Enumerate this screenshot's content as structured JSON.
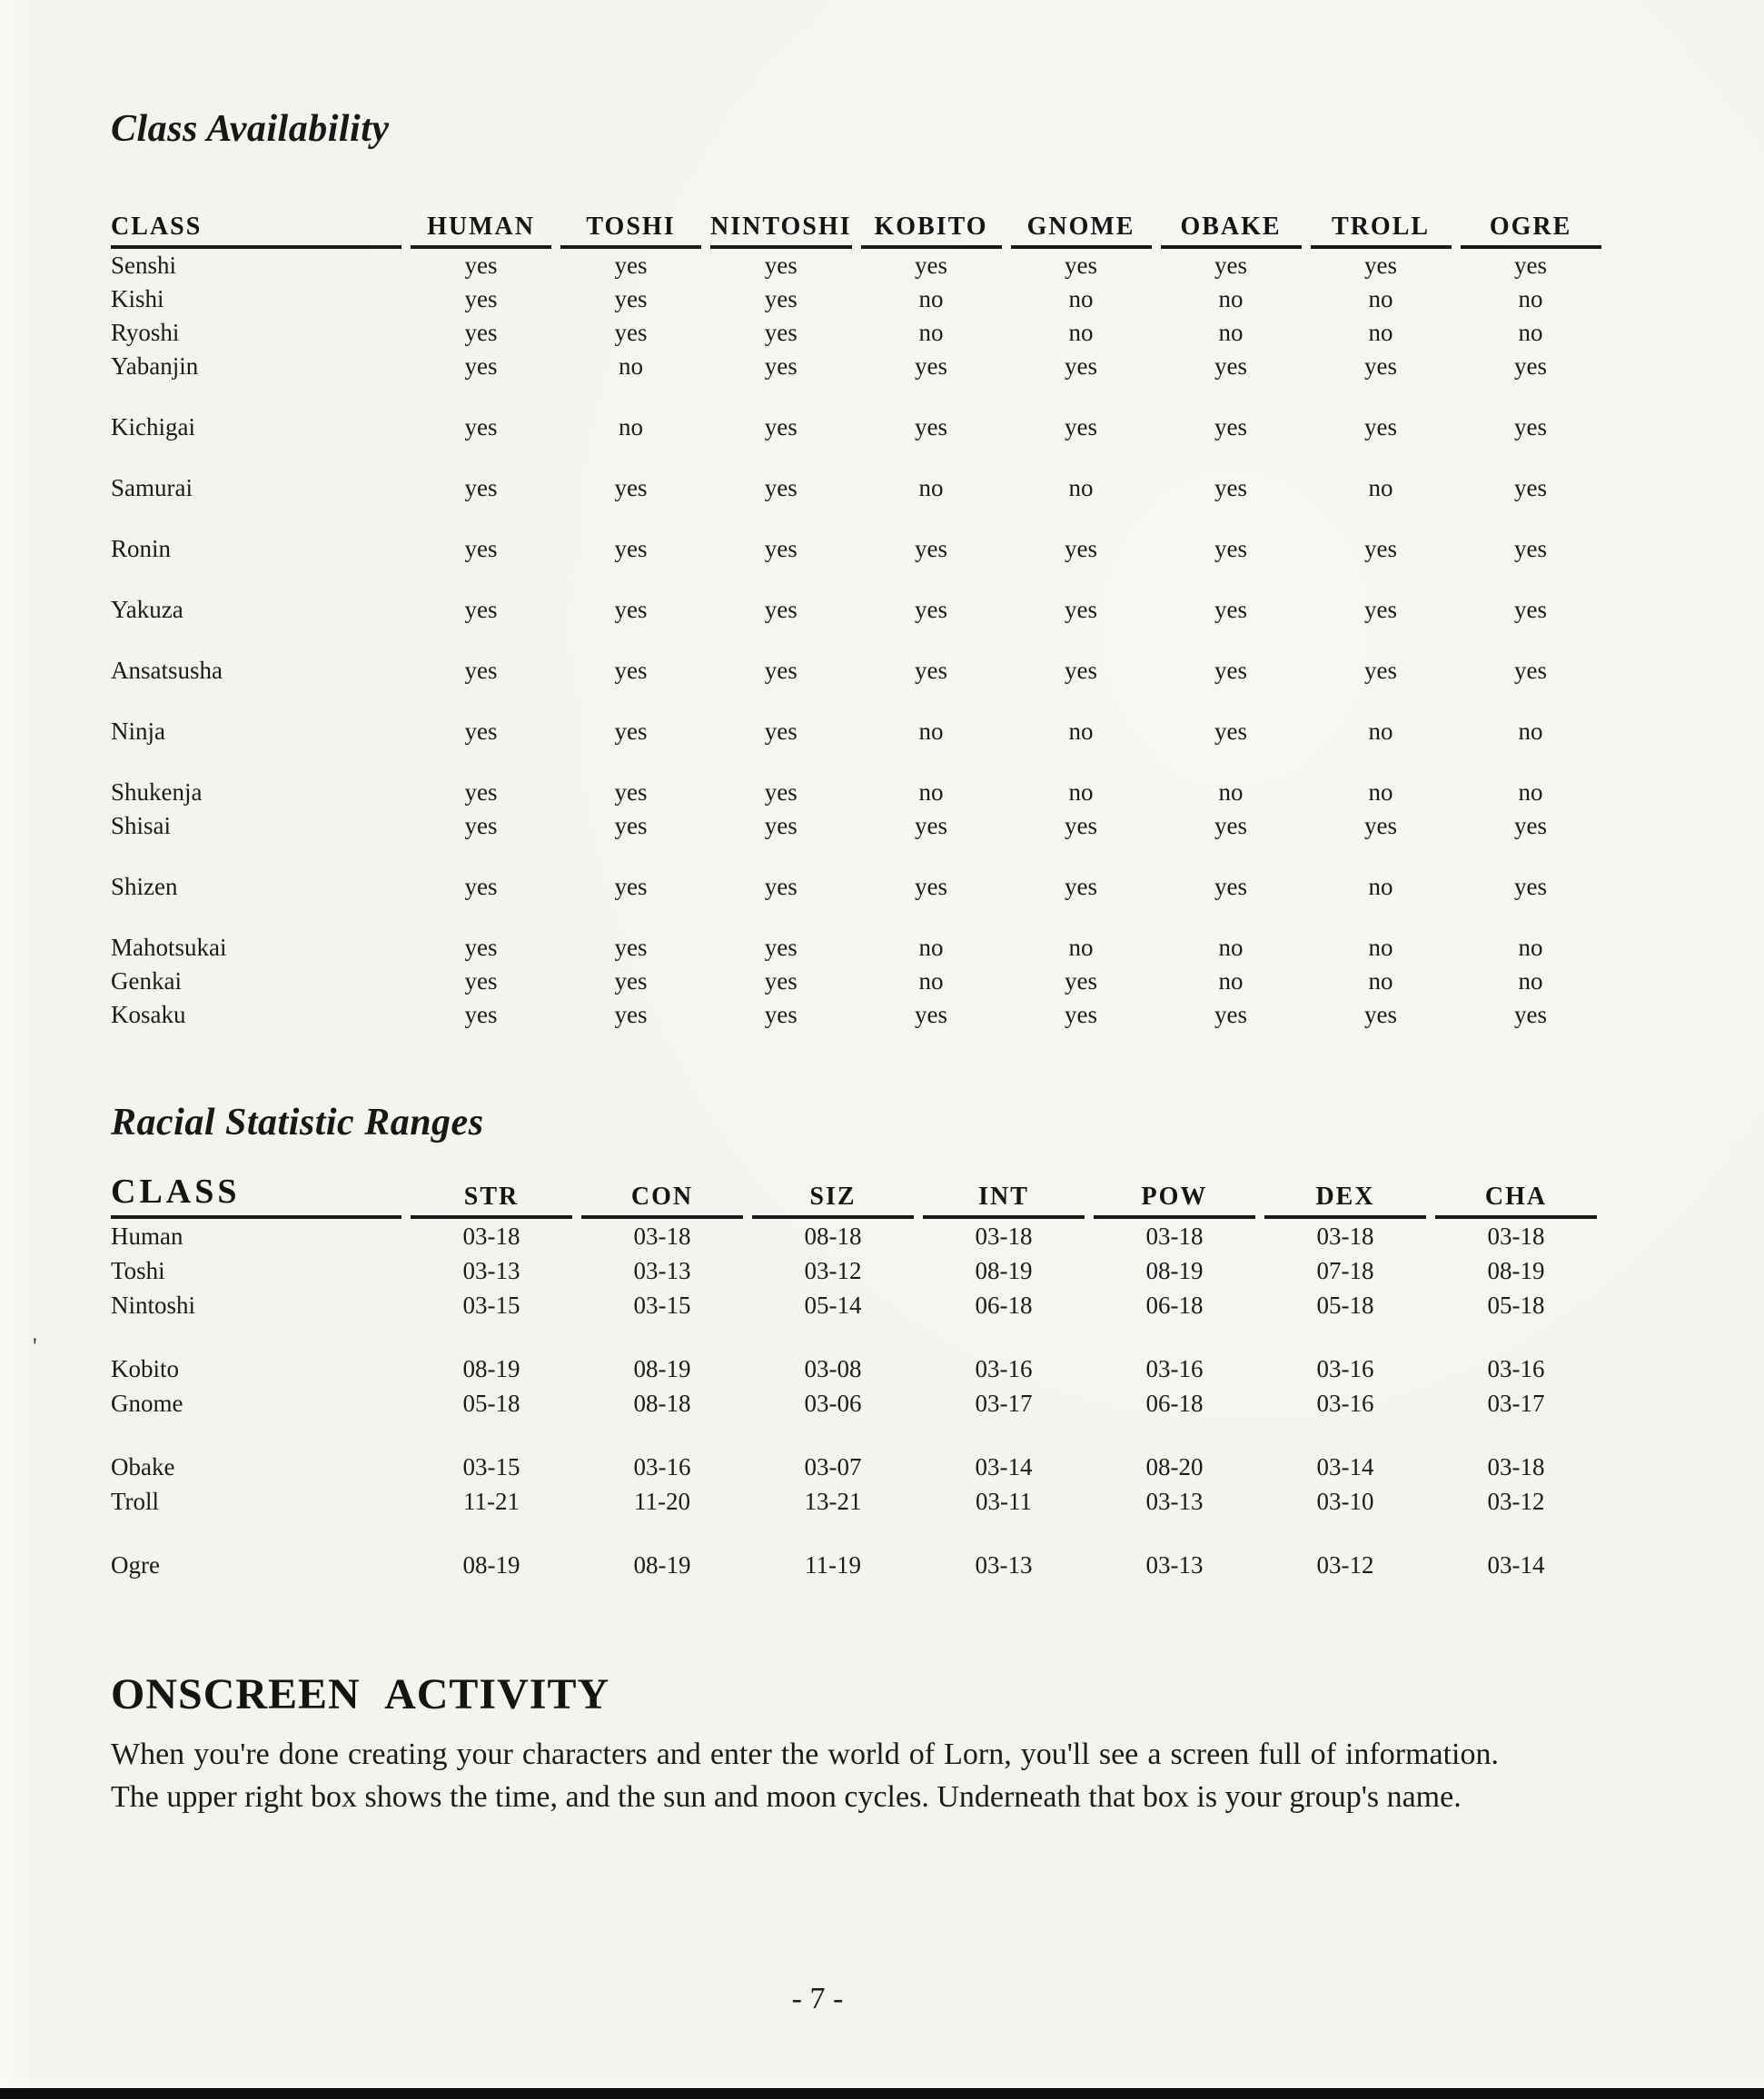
{
  "page": {
    "number_label": "- 7 -",
    "speck": "'"
  },
  "availability": {
    "title": "Class Availability",
    "columns": [
      "CLASS",
      "HUMAN",
      "TOSHI",
      "NINTOSHI",
      "KOBITO",
      "GNOME",
      "OBAKE",
      "TROLL",
      "OGRE"
    ],
    "rows": [
      {
        "name": "Senshi",
        "gap": false,
        "values": [
          "yes",
          "yes",
          "yes",
          "yes",
          "yes",
          "yes",
          "yes",
          "yes"
        ]
      },
      {
        "name": "Kishi",
        "gap": false,
        "values": [
          "yes",
          "yes",
          "yes",
          "no",
          "no",
          "no",
          "no",
          "no"
        ]
      },
      {
        "name": "Ryoshi",
        "gap": false,
        "values": [
          "yes",
          "yes",
          "yes",
          "no",
          "no",
          "no",
          "no",
          "no"
        ]
      },
      {
        "name": "Yabanjin",
        "gap": false,
        "values": [
          "yes",
          "no",
          "yes",
          "yes",
          "yes",
          "yes",
          "yes",
          "yes"
        ]
      },
      {
        "name": "Kichigai",
        "gap": true,
        "values": [
          "yes",
          "no",
          "yes",
          "yes",
          "yes",
          "yes",
          "yes",
          "yes"
        ]
      },
      {
        "name": "Samurai",
        "gap": true,
        "values": [
          "yes",
          "yes",
          "yes",
          "no",
          "no",
          "yes",
          "no",
          "yes"
        ]
      },
      {
        "name": "Ronin",
        "gap": true,
        "values": [
          "yes",
          "yes",
          "yes",
          "yes",
          "yes",
          "yes",
          "yes",
          "yes"
        ]
      },
      {
        "name": "Yakuza",
        "gap": true,
        "values": [
          "yes",
          "yes",
          "yes",
          "yes",
          "yes",
          "yes",
          "yes",
          "yes"
        ]
      },
      {
        "name": "Ansatsusha",
        "gap": true,
        "values": [
          "yes",
          "yes",
          "yes",
          "yes",
          "yes",
          "yes",
          "yes",
          "yes"
        ]
      },
      {
        "name": "Ninja",
        "gap": true,
        "values": [
          "yes",
          "yes",
          "yes",
          "no",
          "no",
          "yes",
          "no",
          "no"
        ]
      },
      {
        "name": "Shukenja",
        "gap": true,
        "values": [
          "yes",
          "yes",
          "yes",
          "no",
          "no",
          "no",
          "no",
          "no"
        ]
      },
      {
        "name": "Shisai",
        "gap": false,
        "values": [
          "yes",
          "yes",
          "yes",
          "yes",
          "yes",
          "yes",
          "yes",
          "yes"
        ]
      },
      {
        "name": "Shizen",
        "gap": true,
        "values": [
          "yes",
          "yes",
          "yes",
          "yes",
          "yes",
          "yes",
          "no",
          "yes"
        ]
      },
      {
        "name": "Mahotsukai",
        "gap": true,
        "values": [
          "yes",
          "yes",
          "yes",
          "no",
          "no",
          "no",
          "no",
          "no"
        ]
      },
      {
        "name": "Genkai",
        "gap": false,
        "values": [
          "yes",
          "yes",
          "yes",
          "no",
          "yes",
          "no",
          "no",
          "no"
        ]
      },
      {
        "name": "Kosaku",
        "gap": false,
        "values": [
          "yes",
          "yes",
          "yes",
          "yes",
          "yes",
          "yes",
          "yes",
          "yes"
        ]
      }
    ]
  },
  "stats": {
    "title": "Racial Statistic Ranges",
    "columns": [
      "CLASS",
      "STR",
      "CON",
      "SIZ",
      "INT",
      "POW",
      "DEX",
      "CHA"
    ],
    "rows": [
      {
        "name": "Human",
        "gap": false,
        "values": [
          "03-18",
          "03-18",
          "08-18",
          "03-18",
          "03-18",
          "03-18",
          "03-18"
        ]
      },
      {
        "name": "Toshi",
        "gap": false,
        "values": [
          "03-13",
          "03-13",
          "03-12",
          "08-19",
          "08-19",
          "07-18",
          "08-19"
        ]
      },
      {
        "name": "Nintoshi",
        "gap": false,
        "values": [
          "03-15",
          "03-15",
          "05-14",
          "06-18",
          "06-18",
          "05-18",
          "05-18"
        ]
      },
      {
        "name": "Kobito",
        "gap": true,
        "values": [
          "08-19",
          "08-19",
          "03-08",
          "03-16",
          "03-16",
          "03-16",
          "03-16"
        ]
      },
      {
        "name": "Gnome",
        "gap": false,
        "values": [
          "05-18",
          "08-18",
          "03-06",
          "03-17",
          "06-18",
          "03-16",
          "03-17"
        ]
      },
      {
        "name": "Obake",
        "gap": true,
        "values": [
          "03-15",
          "03-16",
          "03-07",
          "03-14",
          "08-20",
          "03-14",
          "03-18"
        ]
      },
      {
        "name": "Troll",
        "gap": false,
        "values": [
          "11-21",
          "11-20",
          "13-21",
          "03-11",
          "03-13",
          "03-10",
          "03-12"
        ]
      },
      {
        "name": "Ogre",
        "gap": true,
        "values": [
          "08-19",
          "08-19",
          "11-19",
          "03-13",
          "03-13",
          "03-12",
          "03-14"
        ]
      }
    ]
  },
  "onscreen": {
    "title": "ONSCREEN ACTIVITY",
    "body": "When you're done creating your characters and enter the world of Lorn, you'll see a screen full of information. The upper right box shows the time, and the sun and moon cycles. Underneath that box is your group's name."
  }
}
